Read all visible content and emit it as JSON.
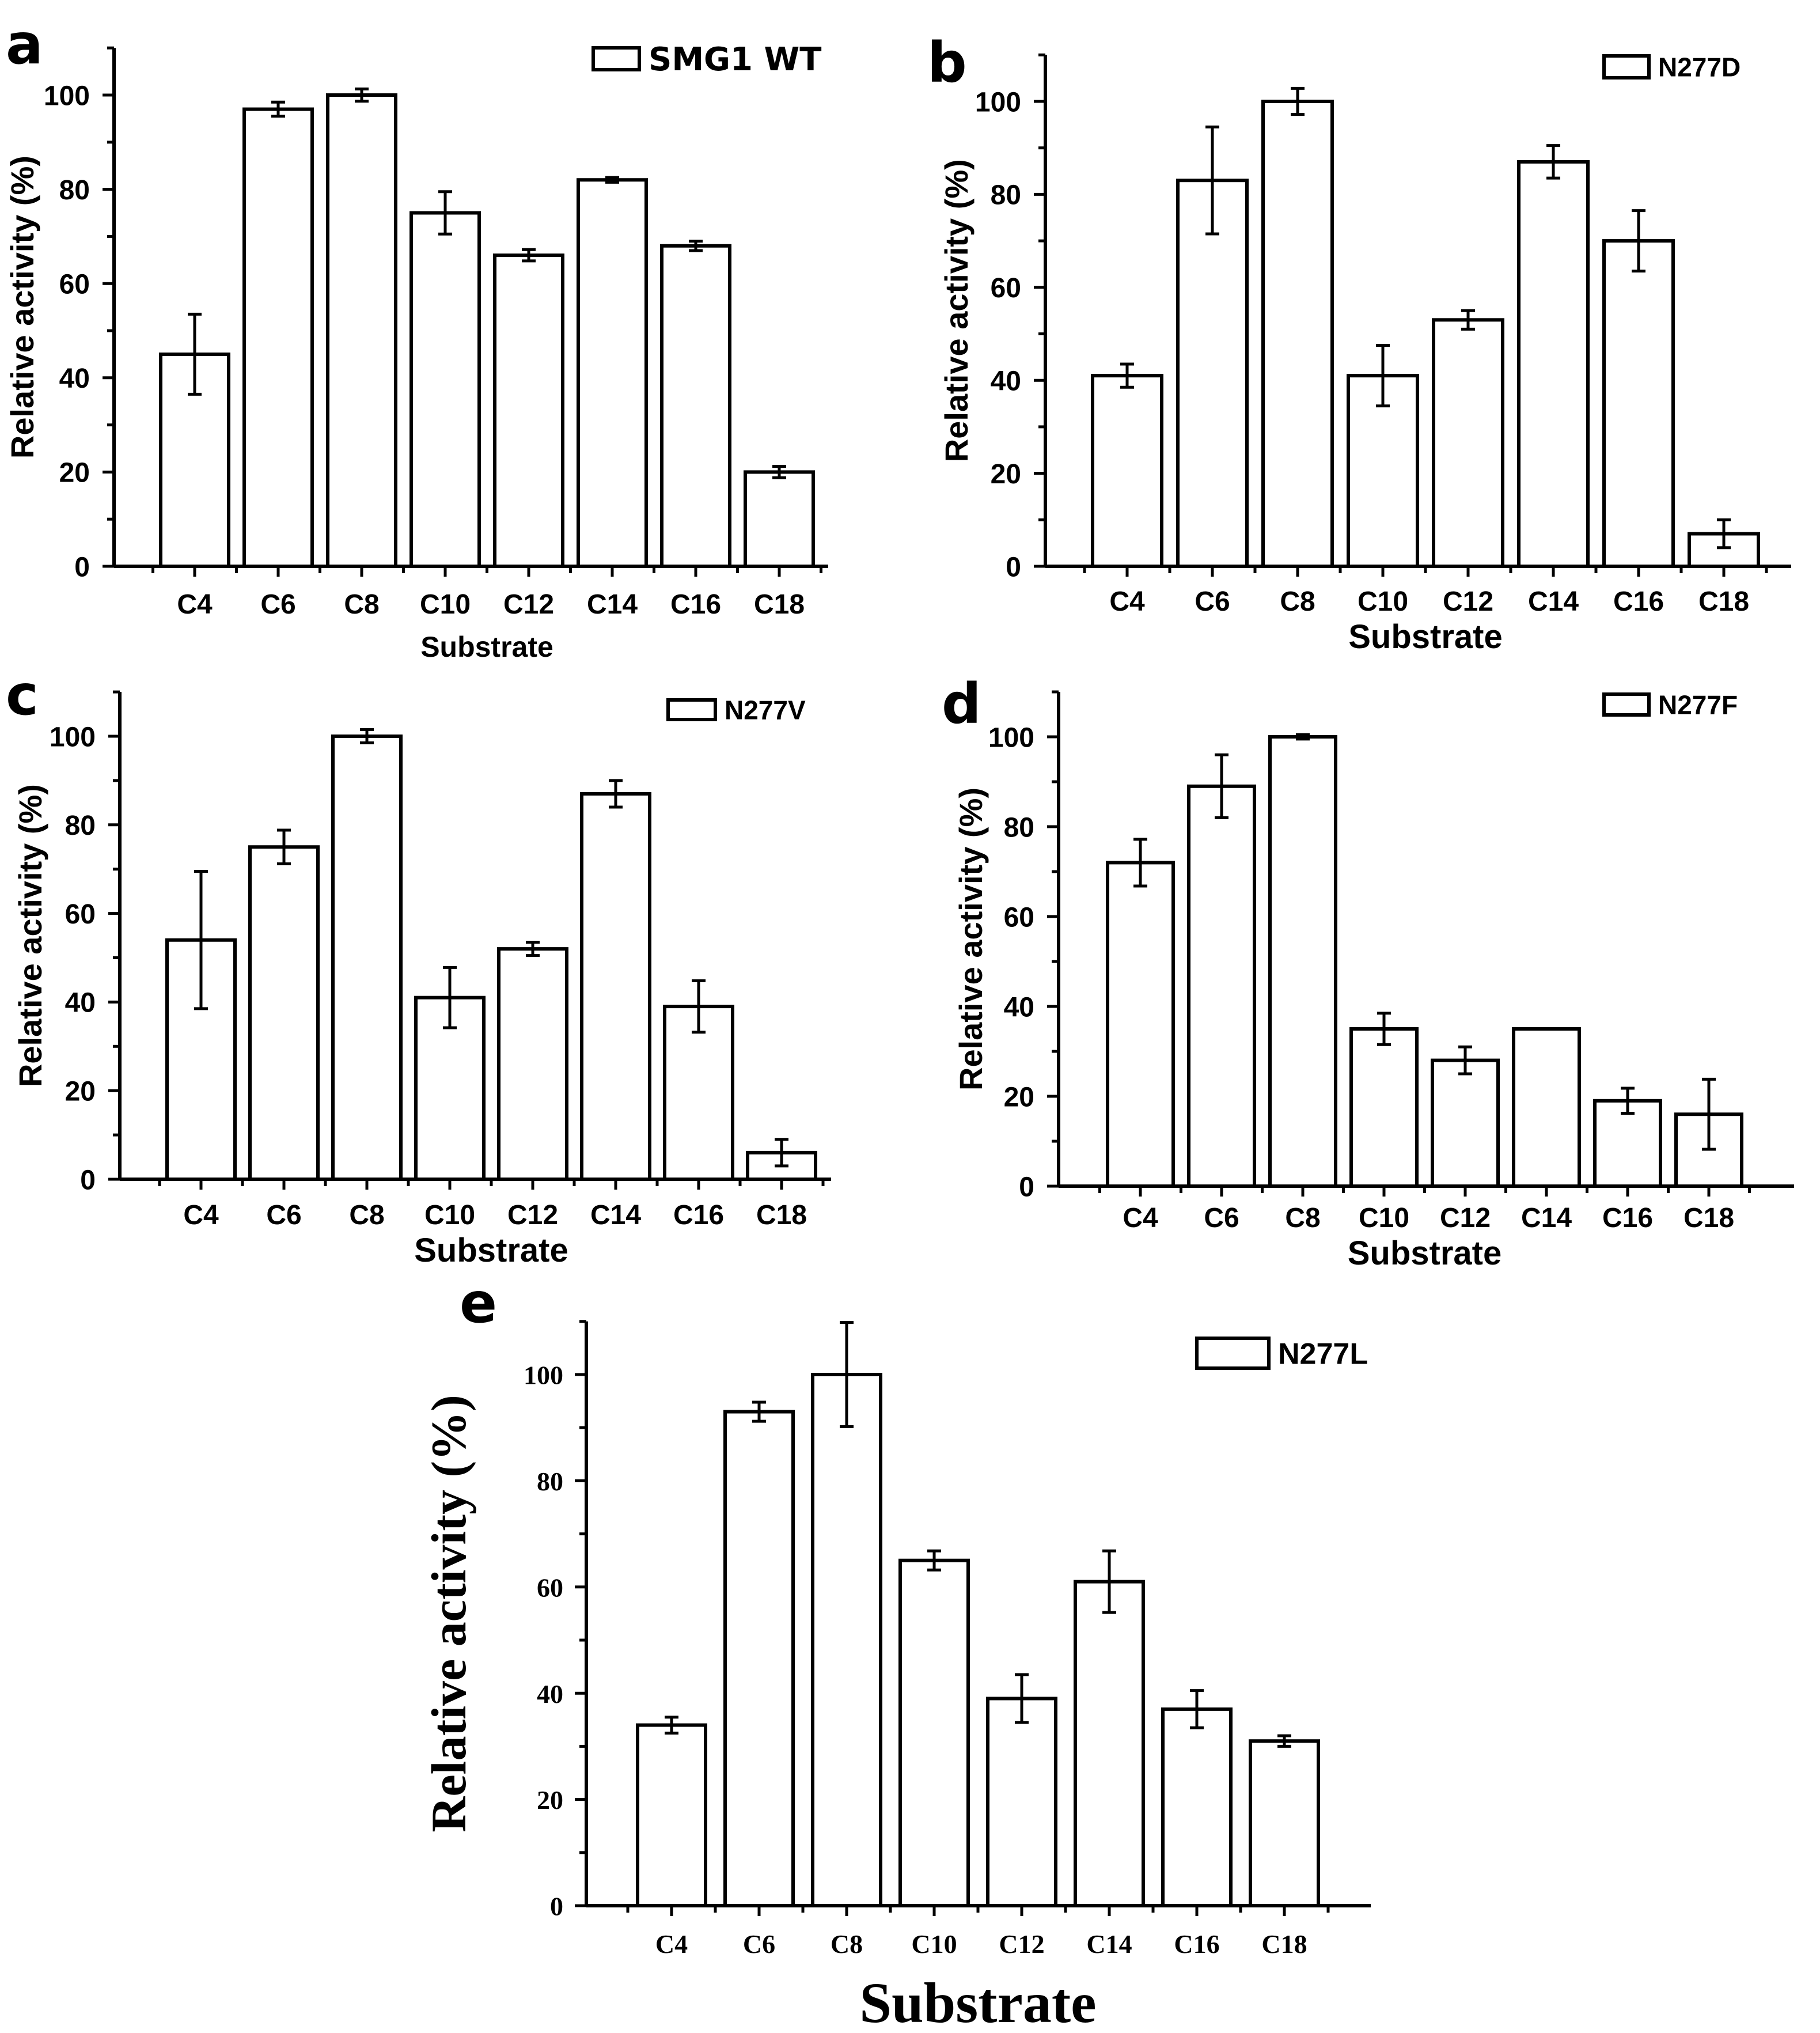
{
  "chart_data": [
    {
      "panel": "a",
      "type": "bar",
      "legend": "SMG1 WT",
      "categories": [
        "C4",
        "C6",
        "C8",
        "C10",
        "C12",
        "C14",
        "C16",
        "C18"
      ],
      "values": [
        45,
        97,
        100,
        75,
        66,
        82,
        68,
        20
      ],
      "errors": [
        8.5,
        1.5,
        1.3,
        4.5,
        1.2,
        0.5,
        1.0,
        1.2
      ],
      "xlabel": "Substrate",
      "ylabel": "Relative activity (%)",
      "yticks": [
        "0",
        "20",
        "40",
        "60",
        "80",
        "100"
      ],
      "ylim": [
        0,
        110
      ]
    },
    {
      "panel": "b",
      "type": "bar",
      "legend": "N277D",
      "categories": [
        "C4",
        "C6",
        "C8",
        "C10",
        "C12",
        "C14",
        "C16",
        "C18"
      ],
      "values": [
        41,
        83,
        100,
        41,
        53,
        87,
        70,
        7
      ],
      "errors": [
        2.5,
        11.5,
        2.8,
        6.5,
        2.0,
        3.5,
        6.5,
        3.0
      ],
      "xlabel": "Substrate",
      "ylabel": "Relative activity (%)",
      "yticks": [
        "0",
        "20",
        "40",
        "60",
        "80",
        "100"
      ],
      "ylim": [
        0,
        110
      ]
    },
    {
      "panel": "c",
      "type": "bar",
      "legend": "N277V",
      "categories": [
        "C4",
        "C6",
        "C8",
        "C10",
        "C12",
        "C14",
        "C16",
        "C18"
      ],
      "values": [
        54,
        75,
        100,
        41,
        52,
        87,
        39,
        6
      ],
      "errors": [
        15.5,
        3.8,
        1.5,
        6.8,
        1.5,
        3.0,
        5.8,
        3.0
      ],
      "xlabel": "Substrate",
      "ylabel": "Relative activity (%)",
      "yticks": [
        "0",
        "20",
        "40",
        "60",
        "80",
        "100"
      ],
      "ylim": [
        0,
        110
      ]
    },
    {
      "panel": "d",
      "type": "bar",
      "legend": "N277F",
      "categories": [
        "C4",
        "C6",
        "C8",
        "C10",
        "C12",
        "C14",
        "C16",
        "C18"
      ],
      "values": [
        72,
        89,
        100,
        35,
        28,
        35,
        19,
        16
      ],
      "errors": [
        5.2,
        7.0,
        0.5,
        3.5,
        3.0,
        0,
        2.8,
        7.8
      ],
      "xlabel": "Substrate",
      "ylabel": "Relative activity (%)",
      "yticks": [
        "0",
        "20",
        "40",
        "60",
        "80",
        "100"
      ],
      "ylim": [
        0,
        110
      ]
    },
    {
      "panel": "e",
      "type": "bar",
      "legend": "N277L",
      "categories": [
        "C4",
        "C6",
        "C8",
        "C10",
        "C12",
        "C14",
        "C16",
        "C18"
      ],
      "values": [
        34,
        93,
        100,
        65,
        39,
        61,
        37,
        31
      ],
      "errors": [
        1.5,
        1.8,
        9.8,
        1.8,
        4.5,
        5.8,
        3.5,
        1.0
      ],
      "xlabel": "Substrate",
      "ylabel": "Relative activity (%)",
      "yticks": [
        "0",
        "20",
        "40",
        "60",
        "80",
        "100"
      ],
      "ylim": [
        0,
        110
      ]
    }
  ]
}
